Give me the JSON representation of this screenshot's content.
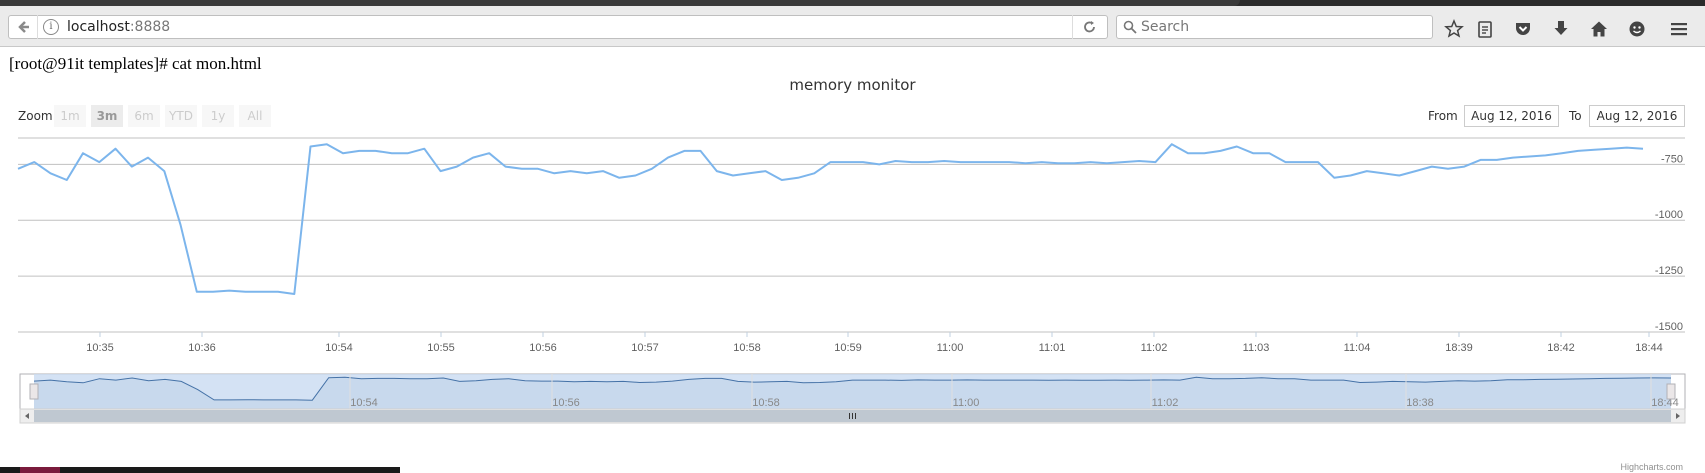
{
  "browser": {
    "url_host": "localhost",
    "url_port": ":8888",
    "search_placeholder": "Search"
  },
  "terminal_command": "[root@91it templates]# cat mon.html",
  "range_selector": {
    "zoom_label": "Zoom",
    "buttons": [
      "1m",
      "3m",
      "6m",
      "YTD",
      "1y",
      "All"
    ],
    "selected": "3m",
    "from_label": "From",
    "from_value": "Aug 12, 2016",
    "to_label": "To",
    "to_value": "Aug 12, 2016"
  },
  "credits": "Highcharts.com",
  "chart_data": {
    "type": "line",
    "title": "memory monitor",
    "series_color": "#7cb5ec",
    "ylim": [
      -1500,
      -650
    ],
    "yticks": [
      -750,
      -1000,
      -1250,
      -1500
    ],
    "xticks": [
      "10:35",
      "10:36",
      "10:54",
      "10:55",
      "10:56",
      "10:57",
      "10:58",
      "10:59",
      "11:00",
      "11:01",
      "11:02",
      "11:03",
      "11:04",
      "18:39",
      "18:42",
      "18:44"
    ],
    "navigator_ticks": [
      "10:54",
      "10:56",
      "10:58",
      "11:00",
      "11:02",
      "18:38",
      "18:44"
    ],
    "x_index_range": [
      0,
      100
    ],
    "x": [
      0,
      1,
      2,
      3,
      4,
      5,
      6,
      7,
      8,
      9,
      10,
      11,
      12,
      13,
      14,
      15,
      16,
      17,
      18,
      19,
      20,
      21,
      22,
      23,
      24,
      25,
      26,
      27,
      28,
      29,
      30,
      31,
      32,
      33,
      34,
      35,
      36,
      37,
      38,
      39,
      40,
      41,
      42,
      43,
      44,
      45,
      46,
      47,
      48,
      49,
      50,
      51,
      52,
      53,
      54,
      55,
      56,
      57,
      58,
      59,
      60,
      61,
      62,
      63,
      64,
      65,
      66,
      67,
      68,
      69,
      70,
      71,
      72,
      73,
      74,
      75,
      76,
      77,
      78,
      79,
      80,
      81,
      82,
      83,
      84,
      85,
      86,
      87,
      88,
      89,
      90,
      91,
      92,
      93,
      94,
      95,
      96,
      97,
      98,
      99,
      100
    ],
    "y": [
      -770,
      -740,
      -790,
      -820,
      -700,
      -740,
      -680,
      -760,
      -720,
      -780,
      -1020,
      -1320,
      -1320,
      -1315,
      -1320,
      -1320,
      -1320,
      -1330,
      -670,
      -660,
      -700,
      -690,
      -690,
      -700,
      -700,
      -680,
      -780,
      -760,
      -720,
      -700,
      -760,
      -770,
      -770,
      -790,
      -780,
      -790,
      -780,
      -810,
      -800,
      -770,
      -720,
      -690,
      -690,
      -780,
      -800,
      -790,
      -780,
      -820,
      -810,
      -790,
      -740,
      -740,
      -740,
      -750,
      -735,
      -740,
      -740,
      -735,
      -740,
      -740,
      -740,
      -740,
      -745,
      -740,
      -745,
      -745,
      -740,
      -745,
      -740,
      -735,
      -740,
      -660,
      -700,
      -700,
      -690,
      -670,
      -700,
      -700,
      -740,
      -740,
      -740,
      -810,
      -800,
      -780,
      -790,
      -800,
      -780,
      -760,
      -770,
      -760,
      -730,
      -730,
      -720,
      -715,
      -710,
      -700,
      -690,
      -685,
      -680,
      -675,
      -680
    ]
  }
}
